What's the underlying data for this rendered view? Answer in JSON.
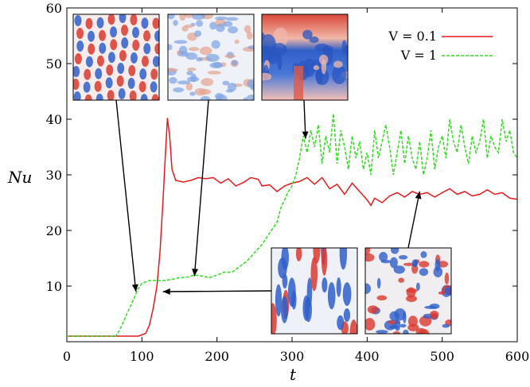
{
  "chart_data": {
    "type": "line",
    "title": "",
    "xlabel": "t",
    "ylabel": "Nu",
    "xlim": [
      0,
      600
    ],
    "ylim": [
      0,
      60
    ],
    "x_ticks": [
      "0",
      "100",
      "200",
      "300",
      "400",
      "500",
      "600"
    ],
    "y_ticks": [
      "10",
      "20",
      "30",
      "40",
      "50",
      "60"
    ],
    "grid": false,
    "legend_position": "top-right",
    "series": [
      {
        "name": "V = 0.1",
        "color": "#e41a1c",
        "style": "solid",
        "points": [
          [
            0,
            1
          ],
          [
            95,
            1
          ],
          [
            105,
            1.5
          ],
          [
            110,
            3
          ],
          [
            115,
            6
          ],
          [
            120,
            10
          ],
          [
            124,
            16
          ],
          [
            128,
            25
          ],
          [
            131,
            33
          ],
          [
            134,
            40.2
          ],
          [
            137,
            37
          ],
          [
            140,
            31
          ],
          [
            145,
            29
          ],
          [
            155,
            28.7
          ],
          [
            165,
            29
          ],
          [
            175,
            29.5
          ],
          [
            185,
            29.3
          ],
          [
            195,
            29.5
          ],
          [
            205,
            28.5
          ],
          [
            215,
            29.3
          ],
          [
            225,
            28
          ],
          [
            235,
            28.6
          ],
          [
            245,
            29.5
          ],
          [
            255,
            29.2
          ],
          [
            260,
            28
          ],
          [
            270,
            28.2
          ],
          [
            280,
            27
          ],
          [
            290,
            28
          ],
          [
            300,
            28.5
          ],
          [
            310,
            28.8
          ],
          [
            320,
            29.5
          ],
          [
            330,
            28.3
          ],
          [
            340,
            29.5
          ],
          [
            350,
            27.5
          ],
          [
            360,
            28.3
          ],
          [
            370,
            26.5
          ],
          [
            380,
            28.5
          ],
          [
            390,
            27
          ],
          [
            400,
            25.5
          ],
          [
            405,
            24.5
          ],
          [
            410,
            25.8
          ],
          [
            420,
            25
          ],
          [
            430,
            26.2
          ],
          [
            440,
            26.8
          ],
          [
            450,
            26
          ],
          [
            460,
            27
          ],
          [
            470,
            26.5
          ],
          [
            480,
            26.8
          ],
          [
            490,
            26
          ],
          [
            500,
            26.8
          ],
          [
            510,
            27.5
          ],
          [
            520,
            26.5
          ],
          [
            530,
            27
          ],
          [
            540,
            26.2
          ],
          [
            550,
            26.5
          ],
          [
            560,
            27.3
          ],
          [
            570,
            26.5
          ],
          [
            580,
            26.8
          ],
          [
            590,
            25.8
          ],
          [
            600,
            25.6
          ]
        ]
      },
      {
        "name": "V = 1",
        "color": "#33dd22",
        "style": "dashed",
        "points": [
          [
            0,
            1
          ],
          [
            65,
            1
          ],
          [
            70,
            2
          ],
          [
            75,
            3.5
          ],
          [
            80,
            5
          ],
          [
            85,
            6.5
          ],
          [
            90,
            8
          ],
          [
            95,
            9.5
          ],
          [
            100,
            10.5
          ],
          [
            110,
            11
          ],
          [
            120,
            11
          ],
          [
            130,
            11
          ],
          [
            140,
            11.2
          ],
          [
            150,
            11.5
          ],
          [
            160,
            11.6
          ],
          [
            170,
            12
          ],
          [
            180,
            11.8
          ],
          [
            190,
            11.5
          ],
          [
            200,
            12
          ],
          [
            210,
            12.5
          ],
          [
            220,
            12.5
          ],
          [
            230,
            13.5
          ],
          [
            240,
            14.5
          ],
          [
            250,
            16
          ],
          [
            260,
            17.5
          ],
          [
            270,
            19.5
          ],
          [
            280,
            21.5
          ],
          [
            285,
            24
          ],
          [
            290,
            25.5
          ],
          [
            295,
            27
          ],
          [
            300,
            28
          ],
          [
            305,
            30
          ],
          [
            310,
            33
          ],
          [
            315,
            37
          ],
          [
            320,
            34
          ],
          [
            325,
            38
          ],
          [
            330,
            35
          ],
          [
            335,
            39
          ],
          [
            340,
            32
          ],
          [
            345,
            37
          ],
          [
            350,
            34
          ],
          [
            355,
            41
          ],
          [
            360,
            32
          ],
          [
            365,
            38
          ],
          [
            370,
            35
          ],
          [
            375,
            31
          ],
          [
            380,
            37
          ],
          [
            385,
            33
          ],
          [
            390,
            36
          ],
          [
            395,
            31
          ],
          [
            400,
            34
          ],
          [
            405,
            30
          ],
          [
            410,
            38
          ],
          [
            415,
            33
          ],
          [
            420,
            36
          ],
          [
            425,
            39
          ],
          [
            430,
            35
          ],
          [
            435,
            30
          ],
          [
            440,
            34
          ],
          [
            445,
            38
          ],
          [
            450,
            32
          ],
          [
            455,
            37
          ],
          [
            460,
            33
          ],
          [
            465,
            31
          ],
          [
            470,
            36
          ],
          [
            475,
            30
          ],
          [
            480,
            33
          ],
          [
            485,
            38
          ],
          [
            490,
            31
          ],
          [
            495,
            35
          ],
          [
            500,
            37
          ],
          [
            505,
            33
          ],
          [
            510,
            40
          ],
          [
            515,
            36
          ],
          [
            520,
            34
          ],
          [
            525,
            39
          ],
          [
            530,
            35
          ],
          [
            535,
            32
          ],
          [
            540,
            37
          ],
          [
            545,
            34
          ],
          [
            550,
            36
          ],
          [
            555,
            40
          ],
          [
            560,
            33
          ],
          [
            565,
            37
          ],
          [
            570,
            35
          ],
          [
            575,
            34
          ],
          [
            580,
            40
          ],
          [
            585,
            36
          ],
          [
            590,
            38
          ],
          [
            595,
            34
          ],
          [
            600,
            33
          ]
        ]
      }
    ],
    "insets": [
      {
        "kind": "rolls",
        "arrow_target": [
          92,
          9
        ]
      },
      {
        "kind": "noise",
        "arrow_target": [
          170,
          11.8
        ]
      },
      {
        "kind": "plume",
        "arrow_target": [
          318,
          36.5
        ]
      },
      {
        "kind": "columns",
        "arrow_target": [
          128,
          9
        ]
      },
      {
        "kind": "turbulent",
        "arrow_target": [
          470,
          27
        ]
      }
    ]
  }
}
